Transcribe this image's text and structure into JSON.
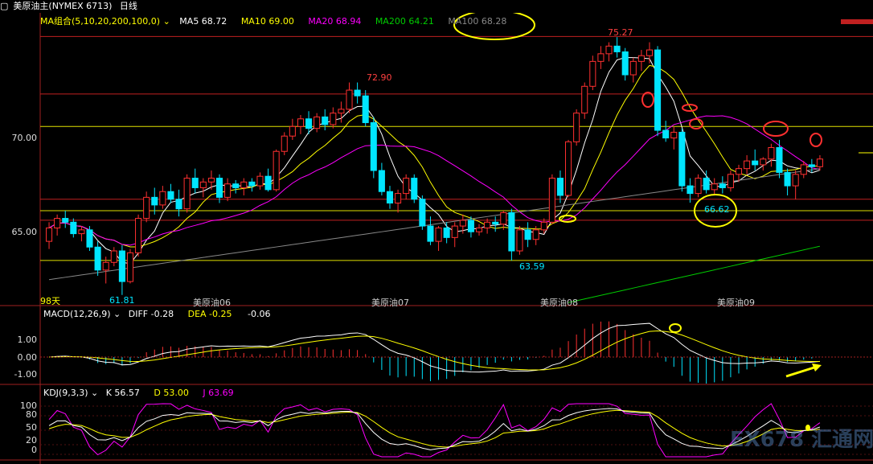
{
  "header": {
    "symbol": "美原油主(NYMEX 6713)",
    "period": "日线"
  },
  "ma_panel": {
    "group_label": "MA组合(5,10,20,200,100,0)",
    "ma5": "MA5 68.72",
    "ma10": "MA10 69.00",
    "ma20": "MA20 68.94",
    "ma200": "MA200 64.21",
    "ma100": "MA100 68.28",
    "days_label": "98天",
    "colors": {
      "ma5": "#ffffff",
      "ma10": "#ffff00",
      "ma20": "#ff00ff",
      "ma200": "#00cc00",
      "ma100": "#888888"
    }
  },
  "macd_panel": {
    "label": "MACD(12,26,9)",
    "diff": "DIFF -0.28",
    "dea": "DEA -0.25",
    "macd": "-0.06"
  },
  "kdj_panel": {
    "label": "KDJ(9,3,3)",
    "k": "K 56.57",
    "d": "D 53.00",
    "j": "J 63.69"
  },
  "price_axis_labels": [
    "70.00",
    "65.00"
  ],
  "macd_axis_labels": [
    "1.00",
    "0.00",
    "-1.00"
  ],
  "kdj_axis_labels": [
    "100",
    "80",
    "50",
    "20",
    "0"
  ],
  "price_annotations": [
    "75.27",
    "72.90",
    "66.62",
    "63.59",
    "61.81"
  ],
  "contract_labels": [
    "美原油06",
    "美原油07",
    "美原油08",
    "美原油09"
  ],
  "watermark": "EX678 汇通网",
  "chart_data": {
    "type": "candlestick",
    "ylim": [
      62.0,
      76.2
    ],
    "ohlc": [
      [
        64.6,
        65.6,
        64.2,
        65.3
      ],
      [
        65.3,
        66.0,
        64.9,
        65.8
      ],
      [
        65.8,
        66.2,
        65.3,
        65.6
      ],
      [
        65.6,
        65.8,
        64.8,
        65.0
      ],
      [
        65.0,
        65.4,
        64.6,
        65.2
      ],
      [
        65.2,
        65.4,
        64.1,
        64.3
      ],
      [
        64.3,
        64.6,
        62.8,
        63.1
      ],
      [
        63.1,
        63.8,
        62.4,
        63.5
      ],
      [
        63.5,
        64.3,
        63.3,
        64.1
      ],
      [
        64.1,
        64.4,
        61.8,
        62.5
      ],
      [
        62.5,
        64.2,
        62.4,
        64.0
      ],
      [
        64.0,
        66.0,
        63.8,
        65.8
      ],
      [
        65.8,
        67.2,
        65.6,
        66.9
      ],
      [
        66.9,
        67.4,
        66.0,
        66.5
      ],
      [
        66.5,
        67.5,
        66.3,
        67.2
      ],
      [
        67.2,
        67.6,
        66.6,
        66.8
      ],
      [
        66.8,
        67.3,
        65.9,
        66.3
      ],
      [
        66.3,
        68.1,
        66.1,
        67.9
      ],
      [
        67.9,
        68.4,
        67.1,
        67.4
      ],
      [
        67.4,
        67.9,
        66.9,
        67.7
      ],
      [
        67.7,
        68.3,
        67.3,
        67.9
      ],
      [
        67.9,
        68.1,
        66.6,
        66.9
      ],
      [
        66.9,
        67.9,
        66.7,
        67.6
      ],
      [
        67.6,
        67.8,
        67.1,
        67.4
      ],
      [
        67.4,
        67.9,
        67.0,
        67.7
      ],
      [
        67.7,
        67.9,
        67.2,
        67.5
      ],
      [
        67.5,
        68.2,
        67.3,
        68.0
      ],
      [
        68.0,
        68.4,
        67.2,
        67.3
      ],
      [
        67.3,
        69.4,
        67.2,
        69.3
      ],
      [
        69.3,
        70.3,
        69.1,
        70.1
      ],
      [
        70.1,
        71.0,
        69.9,
        70.6
      ],
      [
        70.6,
        71.2,
        70.2,
        71.0
      ],
      [
        71.0,
        71.4,
        70.2,
        70.5
      ],
      [
        70.5,
        71.3,
        70.3,
        71.1
      ],
      [
        71.1,
        71.5,
        70.4,
        70.7
      ],
      [
        70.7,
        71.6,
        70.5,
        71.3
      ],
      [
        71.3,
        71.9,
        70.8,
        71.5
      ],
      [
        71.5,
        72.9,
        71.3,
        72.5
      ],
      [
        72.5,
        72.9,
        71.8,
        72.2
      ],
      [
        72.2,
        72.5,
        70.6,
        70.8
      ],
      [
        70.8,
        71.1,
        67.9,
        68.3
      ],
      [
        68.3,
        68.7,
        67.0,
        67.2
      ],
      [
        67.2,
        67.5,
        66.3,
        66.6
      ],
      [
        66.6,
        67.3,
        66.1,
        67.1
      ],
      [
        67.1,
        68.1,
        66.8,
        67.9
      ],
      [
        67.9,
        68.1,
        66.6,
        66.8
      ],
      [
        66.8,
        67.0,
        65.2,
        65.4
      ],
      [
        65.4,
        65.9,
        64.4,
        64.6
      ],
      [
        64.6,
        65.4,
        64.1,
        65.3
      ],
      [
        65.3,
        65.6,
        64.5,
        64.8
      ],
      [
        64.8,
        65.6,
        64.3,
        65.4
      ],
      [
        65.4,
        66.0,
        65.0,
        65.7
      ],
      [
        65.7,
        65.9,
        64.8,
        65.1
      ],
      [
        65.1,
        65.5,
        64.9,
        65.3
      ],
      [
        65.3,
        65.8,
        65.0,
        65.6
      ],
      [
        65.6,
        65.9,
        65.1,
        65.5
      ],
      [
        65.5,
        66.2,
        65.2,
        66.1
      ],
      [
        66.1,
        66.3,
        63.6,
        64.1
      ],
      [
        64.1,
        65.4,
        63.9,
        65.2
      ],
      [
        65.2,
        65.6,
        64.3,
        64.7
      ],
      [
        64.7,
        65.4,
        64.4,
        65.2
      ],
      [
        65.2,
        65.8,
        65.0,
        65.6
      ],
      [
        65.6,
        68.1,
        65.5,
        67.9
      ],
      [
        67.9,
        68.3,
        66.6,
        67.0
      ],
      [
        67.0,
        69.9,
        66.9,
        69.8
      ],
      [
        69.8,
        71.5,
        69.6,
        71.3
      ],
      [
        71.3,
        72.9,
        71.0,
        72.7
      ],
      [
        72.7,
        74.3,
        72.5,
        74.0
      ],
      [
        74.0,
        74.8,
        73.6,
        74.4
      ],
      [
        74.4,
        75.0,
        74.0,
        74.8
      ],
      [
        74.8,
        75.27,
        74.2,
        74.5
      ],
      [
        74.5,
        74.7,
        73.0,
        73.3
      ],
      [
        73.3,
        74.2,
        72.9,
        74.0
      ],
      [
        74.0,
        74.6,
        73.5,
        74.3
      ],
      [
        74.3,
        75.0,
        73.9,
        74.6
      ],
      [
        74.6,
        74.8,
        70.1,
        70.4
      ],
      [
        70.4,
        70.9,
        69.8,
        70.0
      ],
      [
        70.0,
        70.6,
        69.4,
        70.3
      ],
      [
        70.3,
        70.5,
        67.2,
        67.5
      ],
      [
        67.5,
        67.9,
        66.62,
        67.1
      ],
      [
        67.1,
        68.1,
        66.9,
        67.9
      ],
      [
        67.9,
        68.3,
        67.1,
        67.3
      ],
      [
        67.3,
        67.9,
        67.0,
        67.6
      ],
      [
        67.6,
        68.0,
        67.1,
        67.4
      ],
      [
        67.4,
        68.3,
        67.2,
        68.1
      ],
      [
        68.1,
        68.6,
        67.7,
        68.4
      ],
      [
        68.4,
        69.1,
        68.1,
        68.8
      ],
      [
        68.8,
        69.4,
        68.3,
        68.6
      ],
      [
        68.6,
        69.0,
        68.3,
        68.9
      ],
      [
        68.9,
        69.7,
        68.5,
        69.5
      ],
      [
        69.5,
        69.9,
        67.9,
        68.2
      ],
      [
        68.2,
        68.4,
        67.0,
        67.5
      ],
      [
        67.5,
        68.3,
        66.8,
        68.1
      ],
      [
        68.1,
        68.8,
        67.9,
        68.6
      ],
      [
        68.6,
        68.9,
        68.2,
        68.5
      ],
      [
        68.5,
        69.1,
        68.3,
        68.9
      ]
    ]
  }
}
